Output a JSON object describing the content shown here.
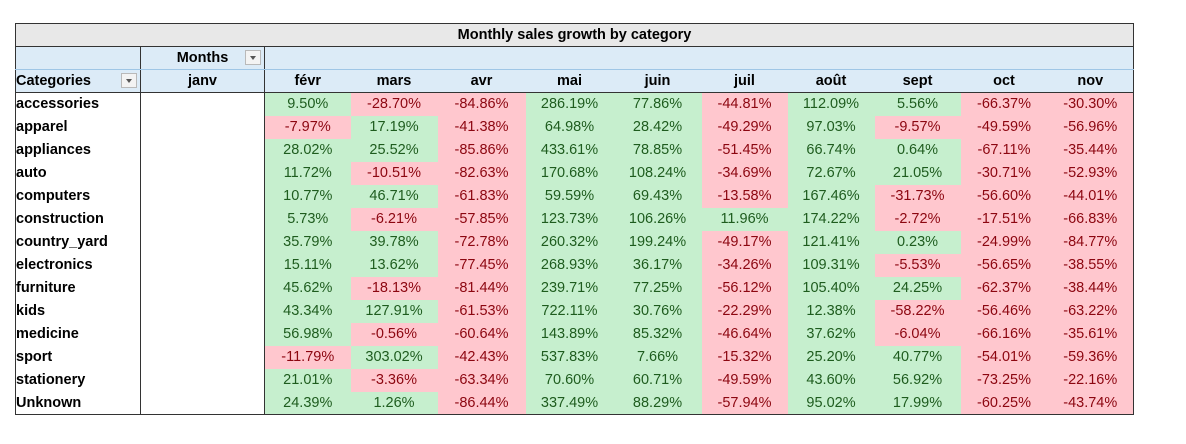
{
  "title": "Monthly sales growth by category",
  "months_label": "Months",
  "categories_label": "Categories",
  "months": [
    "janv",
    "févr",
    "mars",
    "avr",
    "mai",
    "juin",
    "juil",
    "août",
    "sept",
    "oct",
    "nov"
  ],
  "rows": [
    {
      "category": "accessories",
      "values": [
        "",
        "9.50%",
        "-28.70%",
        "-84.86%",
        "286.19%",
        "77.86%",
        "-44.81%",
        "112.09%",
        "5.56%",
        "-66.37%",
        "-30.30%"
      ]
    },
    {
      "category": "apparel",
      "values": [
        "",
        "-7.97%",
        "17.19%",
        "-41.38%",
        "64.98%",
        "28.42%",
        "-49.29%",
        "97.03%",
        "-9.57%",
        "-49.59%",
        "-56.96%"
      ]
    },
    {
      "category": "appliances",
      "values": [
        "",
        "28.02%",
        "25.52%",
        "-85.86%",
        "433.61%",
        "78.85%",
        "-51.45%",
        "66.74%",
        "0.64%",
        "-67.11%",
        "-35.44%"
      ]
    },
    {
      "category": "auto",
      "values": [
        "",
        "11.72%",
        "-10.51%",
        "-82.63%",
        "170.68%",
        "108.24%",
        "-34.69%",
        "72.67%",
        "21.05%",
        "-30.71%",
        "-52.93%"
      ]
    },
    {
      "category": "computers",
      "values": [
        "",
        "10.77%",
        "46.71%",
        "-61.83%",
        "59.59%",
        "69.43%",
        "-13.58%",
        "167.46%",
        "-31.73%",
        "-56.60%",
        "-44.01%"
      ]
    },
    {
      "category": "construction",
      "values": [
        "",
        "5.73%",
        "-6.21%",
        "-57.85%",
        "123.73%",
        "106.26%",
        "11.96%",
        "174.22%",
        "-2.72%",
        "-17.51%",
        "-66.83%"
      ]
    },
    {
      "category": "country_yard",
      "values": [
        "",
        "35.79%",
        "39.78%",
        "-72.78%",
        "260.32%",
        "199.24%",
        "-49.17%",
        "121.41%",
        "0.23%",
        "-24.99%",
        "-84.77%"
      ]
    },
    {
      "category": "electronics",
      "values": [
        "",
        "15.11%",
        "13.62%",
        "-77.45%",
        "268.93%",
        "36.17%",
        "-34.26%",
        "109.31%",
        "-5.53%",
        "-56.65%",
        "-38.55%"
      ]
    },
    {
      "category": "furniture",
      "values": [
        "",
        "45.62%",
        "-18.13%",
        "-81.44%",
        "239.71%",
        "77.25%",
        "-56.12%",
        "105.40%",
        "24.25%",
        "-62.37%",
        "-38.44%"
      ]
    },
    {
      "category": "kids",
      "values": [
        "",
        "43.34%",
        "127.91%",
        "-61.53%",
        "722.11%",
        "30.76%",
        "-22.29%",
        "12.38%",
        "-58.22%",
        "-56.46%",
        "-63.22%"
      ]
    },
    {
      "category": "medicine",
      "values": [
        "",
        "56.98%",
        "-0.56%",
        "-60.64%",
        "143.89%",
        "85.32%",
        "-46.64%",
        "37.62%",
        "-6.04%",
        "-66.16%",
        "-35.61%"
      ]
    },
    {
      "category": "sport",
      "values": [
        "",
        "-11.79%",
        "303.02%",
        "-42.43%",
        "537.83%",
        "7.66%",
        "-15.32%",
        "25.20%",
        "40.77%",
        "-54.01%",
        "-59.36%"
      ]
    },
    {
      "category": "stationery",
      "values": [
        "",
        "21.01%",
        "-3.36%",
        "-63.34%",
        "70.60%",
        "60.71%",
        "-49.59%",
        "43.60%",
        "56.92%",
        "-73.25%",
        "-22.16%"
      ]
    },
    {
      "category": "Unknown",
      "values": [
        "",
        "24.39%",
        "1.26%",
        "-86.44%",
        "337.49%",
        "88.29%",
        "-57.94%",
        "95.02%",
        "17.99%",
        "-60.25%",
        "-43.74%"
      ]
    }
  ],
  "colors": {
    "positive_fill": "#c6efce",
    "positive_text": "#1e5c1e",
    "negative_fill": "#ffc7ce",
    "negative_text": "#8c0610",
    "header_fill": "#dcebf7",
    "title_fill": "#e8e8e8"
  },
  "icons": {
    "months_filter": "dropdown-arrow-icon",
    "categories_filter": "dropdown-arrow-icon"
  }
}
